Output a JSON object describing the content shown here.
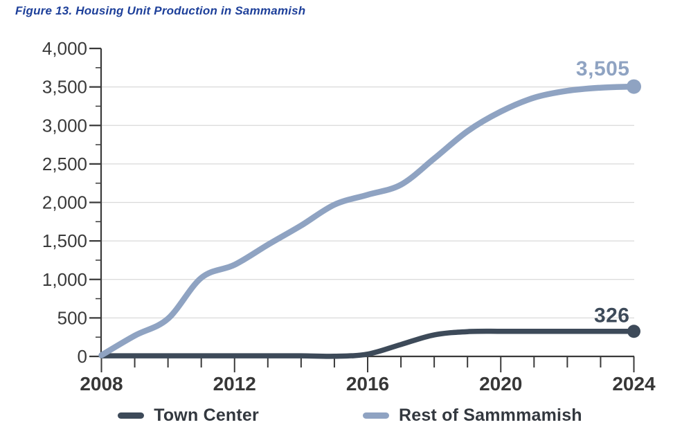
{
  "title": "Figure 13. Housing Unit Production in Sammamish",
  "colors": {
    "title": "#1e409a",
    "axis": "#3a3a3a",
    "tick_label": "#3a3a3a",
    "x_tick_label": "#373737",
    "grid": "#d9d9d9",
    "legend_text": "#33383f",
    "town_center": "#3d4a59",
    "rest_of_sammamish": "#8fa3c2",
    "background": "#ffffff"
  },
  "chart_data": {
    "type": "line",
    "title": "Figure 13. Housing Unit Production in Sammamish",
    "x": [
      2008,
      2009,
      2010,
      2011,
      2012,
      2013,
      2014,
      2015,
      2016,
      2017,
      2018,
      2019,
      2020,
      2021,
      2022,
      2023,
      2024
    ],
    "x_labeled": [
      2008,
      2012,
      2016,
      2020,
      2024
    ],
    "series": [
      {
        "name": "Town Center",
        "color": "#3d4a59",
        "end_label": "326",
        "end_value": 326,
        "values": [
          8,
          8,
          8,
          8,
          8,
          8,
          8,
          2,
          30,
          155,
          280,
          322,
          326,
          326,
          326,
          326,
          326
        ]
      },
      {
        "name": "Rest of Sammmamish",
        "color": "#8fa3c2",
        "end_label": "3,505",
        "end_value": 3505,
        "values": [
          15,
          270,
          490,
          1020,
          1190,
          1450,
          1700,
          1970,
          2100,
          2230,
          2570,
          2925,
          3180,
          3360,
          3450,
          3490,
          3505
        ]
      }
    ],
    "ylim": [
      0,
      4000
    ],
    "ytick_step": 500,
    "ytick_minor_step": 250,
    "y_tick_labels": [
      "0",
      "500",
      "1,000",
      "1,500",
      "2,000",
      "2,500",
      "3,000",
      "3,500",
      "4,000"
    ],
    "grid": "horizontal-majors",
    "legend_position": "bottom",
    "line_style": "smoothed",
    "end_markers": "dot"
  },
  "legend": {
    "items": [
      {
        "label": "Town Center"
      },
      {
        "label": "Rest of Sammmamish"
      }
    ]
  }
}
